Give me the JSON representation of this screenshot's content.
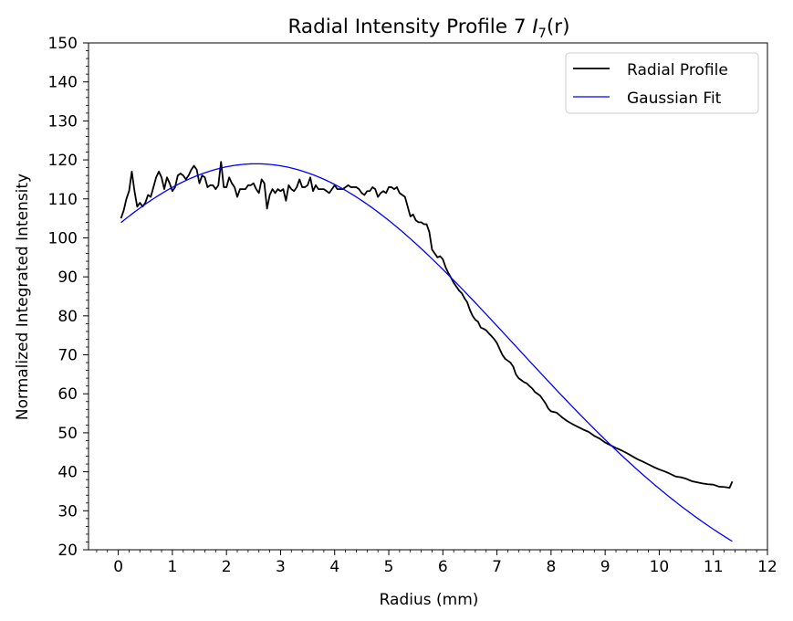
{
  "chart_data": {
    "type": "line",
    "title": "Radial Intensity Profile 7 ",
    "title_math": {
      "base": "I",
      "sub": "7",
      "arg": "(r)"
    },
    "xlabel": "Radius (mm)",
    "ylabel": "Normalized Integrated Intensity",
    "xlim": [
      -0.55,
      12
    ],
    "ylim": [
      20,
      150
    ],
    "xticks": [
      0,
      1,
      2,
      3,
      4,
      5,
      6,
      7,
      8,
      9,
      10,
      11,
      12
    ],
    "yticks": [
      20,
      30,
      40,
      50,
      60,
      70,
      80,
      90,
      100,
      110,
      120,
      130,
      140,
      150
    ],
    "x_minor_step": 0.2,
    "y_minor_step": 2,
    "grid": false,
    "legend_position": "top-right",
    "series": [
      {
        "name": "Radial Profile",
        "color": "#000000",
        "x": [
          0.05,
          0.1,
          0.15,
          0.2,
          0.25,
          0.3,
          0.35,
          0.4,
          0.45,
          0.5,
          0.55,
          0.6,
          0.65,
          0.7,
          0.75,
          0.8,
          0.85,
          0.9,
          0.95,
          1.0,
          1.05,
          1.1,
          1.15,
          1.2,
          1.25,
          1.3,
          1.35,
          1.4,
          1.45,
          1.5,
          1.55,
          1.6,
          1.65,
          1.7,
          1.75,
          1.8,
          1.85,
          1.9,
          1.95,
          2.0,
          2.05,
          2.1,
          2.15,
          2.2,
          2.25,
          2.3,
          2.35,
          2.4,
          2.45,
          2.5,
          2.55,
          2.6,
          2.65,
          2.7,
          2.75,
          2.8,
          2.85,
          2.9,
          2.95,
          3.0,
          3.05,
          3.1,
          3.15,
          3.2,
          3.25,
          3.3,
          3.35,
          3.4,
          3.45,
          3.5,
          3.55,
          3.6,
          3.65,
          3.7,
          3.75,
          3.8,
          3.85,
          3.9,
          3.95,
          4.0,
          4.05,
          4.1,
          4.15,
          4.2,
          4.25,
          4.3,
          4.35,
          4.4,
          4.45,
          4.5,
          4.55,
          4.6,
          4.65,
          4.7,
          4.75,
          4.8,
          4.85,
          4.9,
          4.95,
          5.0,
          5.05,
          5.1,
          5.15,
          5.2,
          5.25,
          5.3,
          5.35,
          5.4,
          5.45,
          5.5,
          5.55,
          5.6,
          5.65,
          5.7,
          5.75,
          5.8,
          5.85,
          5.9,
          5.95,
          6.0,
          6.05,
          6.1,
          6.15,
          6.2,
          6.25,
          6.3,
          6.35,
          6.4,
          6.45,
          6.5,
          6.55,
          6.6,
          6.65,
          6.7,
          6.75,
          6.8,
          6.85,
          6.9,
          6.95,
          7.0,
          7.05,
          7.1,
          7.15,
          7.2,
          7.25,
          7.3,
          7.35,
          7.4,
          7.45,
          7.5,
          7.55,
          7.6,
          7.65,
          7.7,
          7.75,
          7.8,
          7.85,
          7.9,
          7.95,
          8.0,
          8.1,
          8.2,
          8.3,
          8.4,
          8.5,
          8.6,
          8.7,
          8.8,
          8.9,
          9.0,
          9.1,
          9.2,
          9.3,
          9.4,
          9.5,
          9.6,
          9.7,
          9.8,
          9.9,
          10.0,
          10.1,
          10.2,
          10.3,
          10.4,
          10.5,
          10.6,
          10.7,
          10.8,
          10.9,
          11.0,
          11.1,
          11.2,
          11.3,
          11.35
        ],
        "values": [
          105,
          107,
          110,
          112,
          117,
          112,
          108,
          109,
          108,
          109,
          111,
          110.5,
          113,
          115.5,
          117,
          115.5,
          112.5,
          115.5,
          114,
          112,
          113,
          116,
          116.5,
          116,
          115,
          116,
          117.5,
          118.5,
          117.5,
          114,
          116,
          115.5,
          113,
          113.5,
          113.5,
          112.5,
          113.5,
          119.5,
          113,
          113,
          115.5,
          114,
          113,
          110.5,
          112.5,
          112.5,
          112.5,
          113.5,
          113.5,
          114,
          112.5,
          111.5,
          115,
          114,
          107.5,
          111,
          112.5,
          111.5,
          112.5,
          112,
          112.5,
          109.5,
          113.5,
          112.5,
          112,
          113,
          115,
          113,
          113,
          113.5,
          115.5,
          112,
          113.5,
          112.5,
          112.5,
          112.5,
          112,
          111.5,
          112.5,
          113.5,
          112.5,
          112.5,
          112.5,
          113,
          113.5,
          113,
          113,
          113,
          112.5,
          111.5,
          111,
          112,
          112,
          113,
          112.5,
          110.5,
          111.5,
          112,
          111.5,
          113,
          113,
          112.5,
          113,
          111.5,
          111,
          110.5,
          108,
          105.5,
          106,
          104.5,
          104,
          104,
          103.5,
          103.5,
          101.5,
          97,
          96,
          95,
          95.3,
          94.5,
          92.5,
          91,
          89.8,
          88.5,
          87.5,
          86.5,
          85.8,
          84.5,
          83.5,
          81.5,
          80,
          79,
          78.5,
          77,
          76.7,
          76.3,
          75.5,
          74.8,
          74,
          73,
          71.5,
          70,
          69,
          68.5,
          68,
          67,
          65,
          64,
          63.5,
          63,
          62.7,
          62,
          61.4,
          60.5,
          60,
          59.5,
          58.5,
          57.5,
          56.2,
          55.5,
          55.2,
          54,
          53,
          52.2,
          51.5,
          50.8,
          50.2,
          49.2,
          48.5,
          47.5,
          46.8,
          46.1,
          45.5,
          44.8,
          44,
          43.2,
          42.6,
          41.9,
          41.2,
          40.6,
          40.1,
          39.5,
          38.8,
          38.6,
          38.2,
          37.6,
          37.3,
          37,
          36.8,
          36.7,
          36.2,
          36.1,
          35.9,
          37.5
        ]
      },
      {
        "name": "Gaussian Fit",
        "color": "#0000ff",
        "model": {
          "amplitude": 119,
          "center": 2.55,
          "sigma": 4.8
        },
        "x_range": [
          0.05,
          11.35
        ]
      }
    ]
  }
}
